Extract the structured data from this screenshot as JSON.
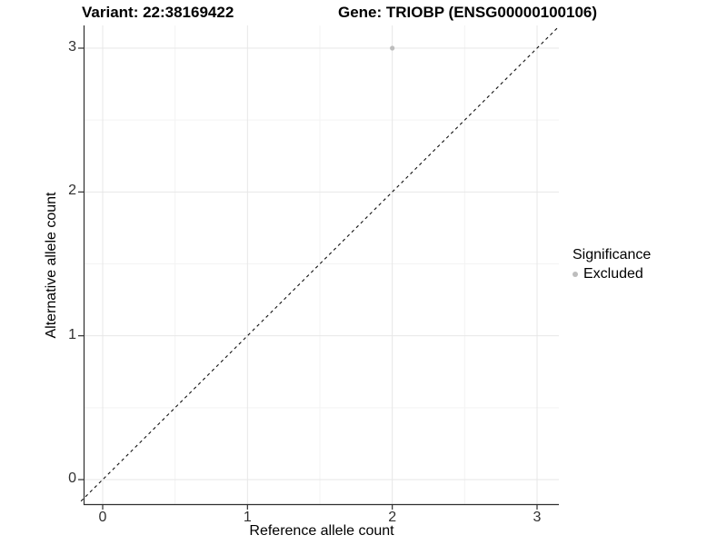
{
  "chart_data": {
    "type": "scatter",
    "titles": {
      "left": "Variant: 22:38169422",
      "right": "Gene: TRIOBP (ENSG00000100106)"
    },
    "xlabel": "Reference allele count",
    "ylabel": "Alternative allele count",
    "x_ticks": [
      0,
      1,
      2,
      3
    ],
    "y_ticks": [
      0,
      1,
      2,
      3
    ],
    "xlim": [
      -0.15,
      3.15
    ],
    "ylim": [
      -0.15,
      3.15
    ],
    "grid": {
      "major_color": "#e7e7e7",
      "minor_color": "#f3f3f3",
      "minor_step": 0.5
    },
    "reference_line": {
      "type": "identity",
      "equation": "y = x",
      "style": "dashed",
      "color": "#111111"
    },
    "series": [
      {
        "name": "Excluded",
        "color": "#bdbdbd",
        "points": [
          {
            "x": 2,
            "y": 3
          }
        ],
        "point_radius": 2.6
      }
    ],
    "legend": {
      "title": "Significance",
      "position": "right",
      "entries": [
        {
          "label": "Excluded",
          "color": "#bdbdbd"
        }
      ]
    },
    "axis_color": "#2f2f2f"
  }
}
